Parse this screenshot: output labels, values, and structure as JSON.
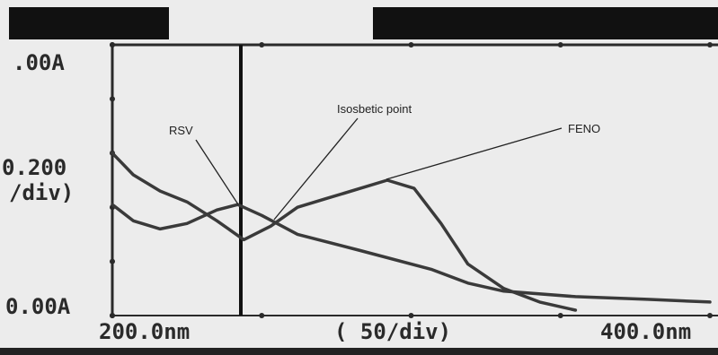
{
  "chart_data": {
    "type": "line",
    "y_max_label": ".00A",
    "y_div_label": "0.200",
    "y_div_unit": "/div)",
    "y_min_label": "0.00A",
    "x_min_label": "200.0nm",
    "x_div_label": "( 50/div)",
    "x_max_label": "400.0nm",
    "annotations": [
      "RSV",
      "Isosbetic point",
      "FENO"
    ],
    "xlim": [
      200,
      400
    ],
    "ylim": [
      0,
      1
    ],
    "xticks": [
      200,
      250,
      300,
      350,
      400
    ],
    "yticks": [
      0,
      0.2,
      0.4,
      0.6,
      0.8,
      1
    ],
    "series": [
      {
        "color": "#3a3a3a",
        "x": [
          200,
          207,
          216,
          225,
          235,
          244,
          253,
          262,
          271,
          283,
          292,
          301,
          310,
          319,
          331,
          343,
          355
        ],
        "values": [
          0.6,
          0.52,
          0.46,
          0.42,
          0.35,
          0.28,
          0.33,
          0.4,
          0.43,
          0.47,
          0.5,
          0.47,
          0.34,
          0.19,
          0.1,
          0.05,
          0.02
        ]
      },
      {
        "color": "#3a3a3a",
        "x": [
          200,
          207,
          216,
          225,
          235,
          242,
          250,
          262,
          283,
          307,
          319,
          331,
          355,
          379,
          400
        ],
        "values": [
          0.41,
          0.35,
          0.32,
          0.34,
          0.39,
          0.41,
          0.37,
          0.3,
          0.24,
          0.17,
          0.12,
          0.09,
          0.07,
          0.06,
          0.05
        ]
      }
    ]
  }
}
